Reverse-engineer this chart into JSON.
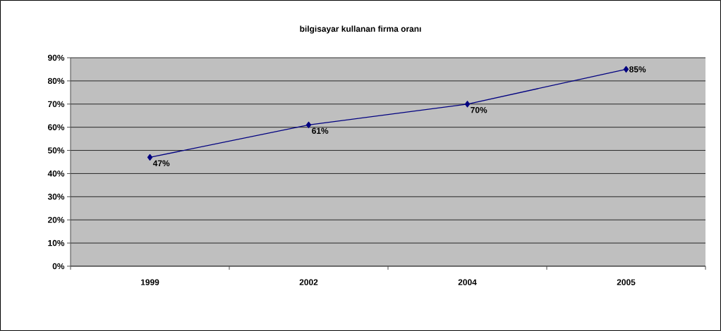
{
  "chart_data": {
    "type": "line",
    "title": "bilgisayar kullanan firma oranı",
    "categories": [
      "1999",
      "2002",
      "2004",
      "2005"
    ],
    "values": [
      47,
      61,
      70,
      85
    ],
    "value_labels": [
      "47%",
      "61%",
      "70%",
      "85%"
    ],
    "color": "#000080",
    "marker": "diamond",
    "line_style": "solid",
    "grid": "y",
    "ylim": [
      0,
      90
    ],
    "yticks": [
      {
        "value": 0,
        "label": "0%"
      },
      {
        "value": 10,
        "label": "10%"
      },
      {
        "value": 20,
        "label": "20%"
      },
      {
        "value": 30,
        "label": "30%"
      },
      {
        "value": 40,
        "label": "40%"
      },
      {
        "value": 50,
        "label": "50%"
      },
      {
        "value": 60,
        "label": "60%"
      },
      {
        "value": 70,
        "label": "70%"
      },
      {
        "value": 80,
        "label": "80%"
      },
      {
        "value": 90,
        "label": "90%"
      }
    ]
  }
}
